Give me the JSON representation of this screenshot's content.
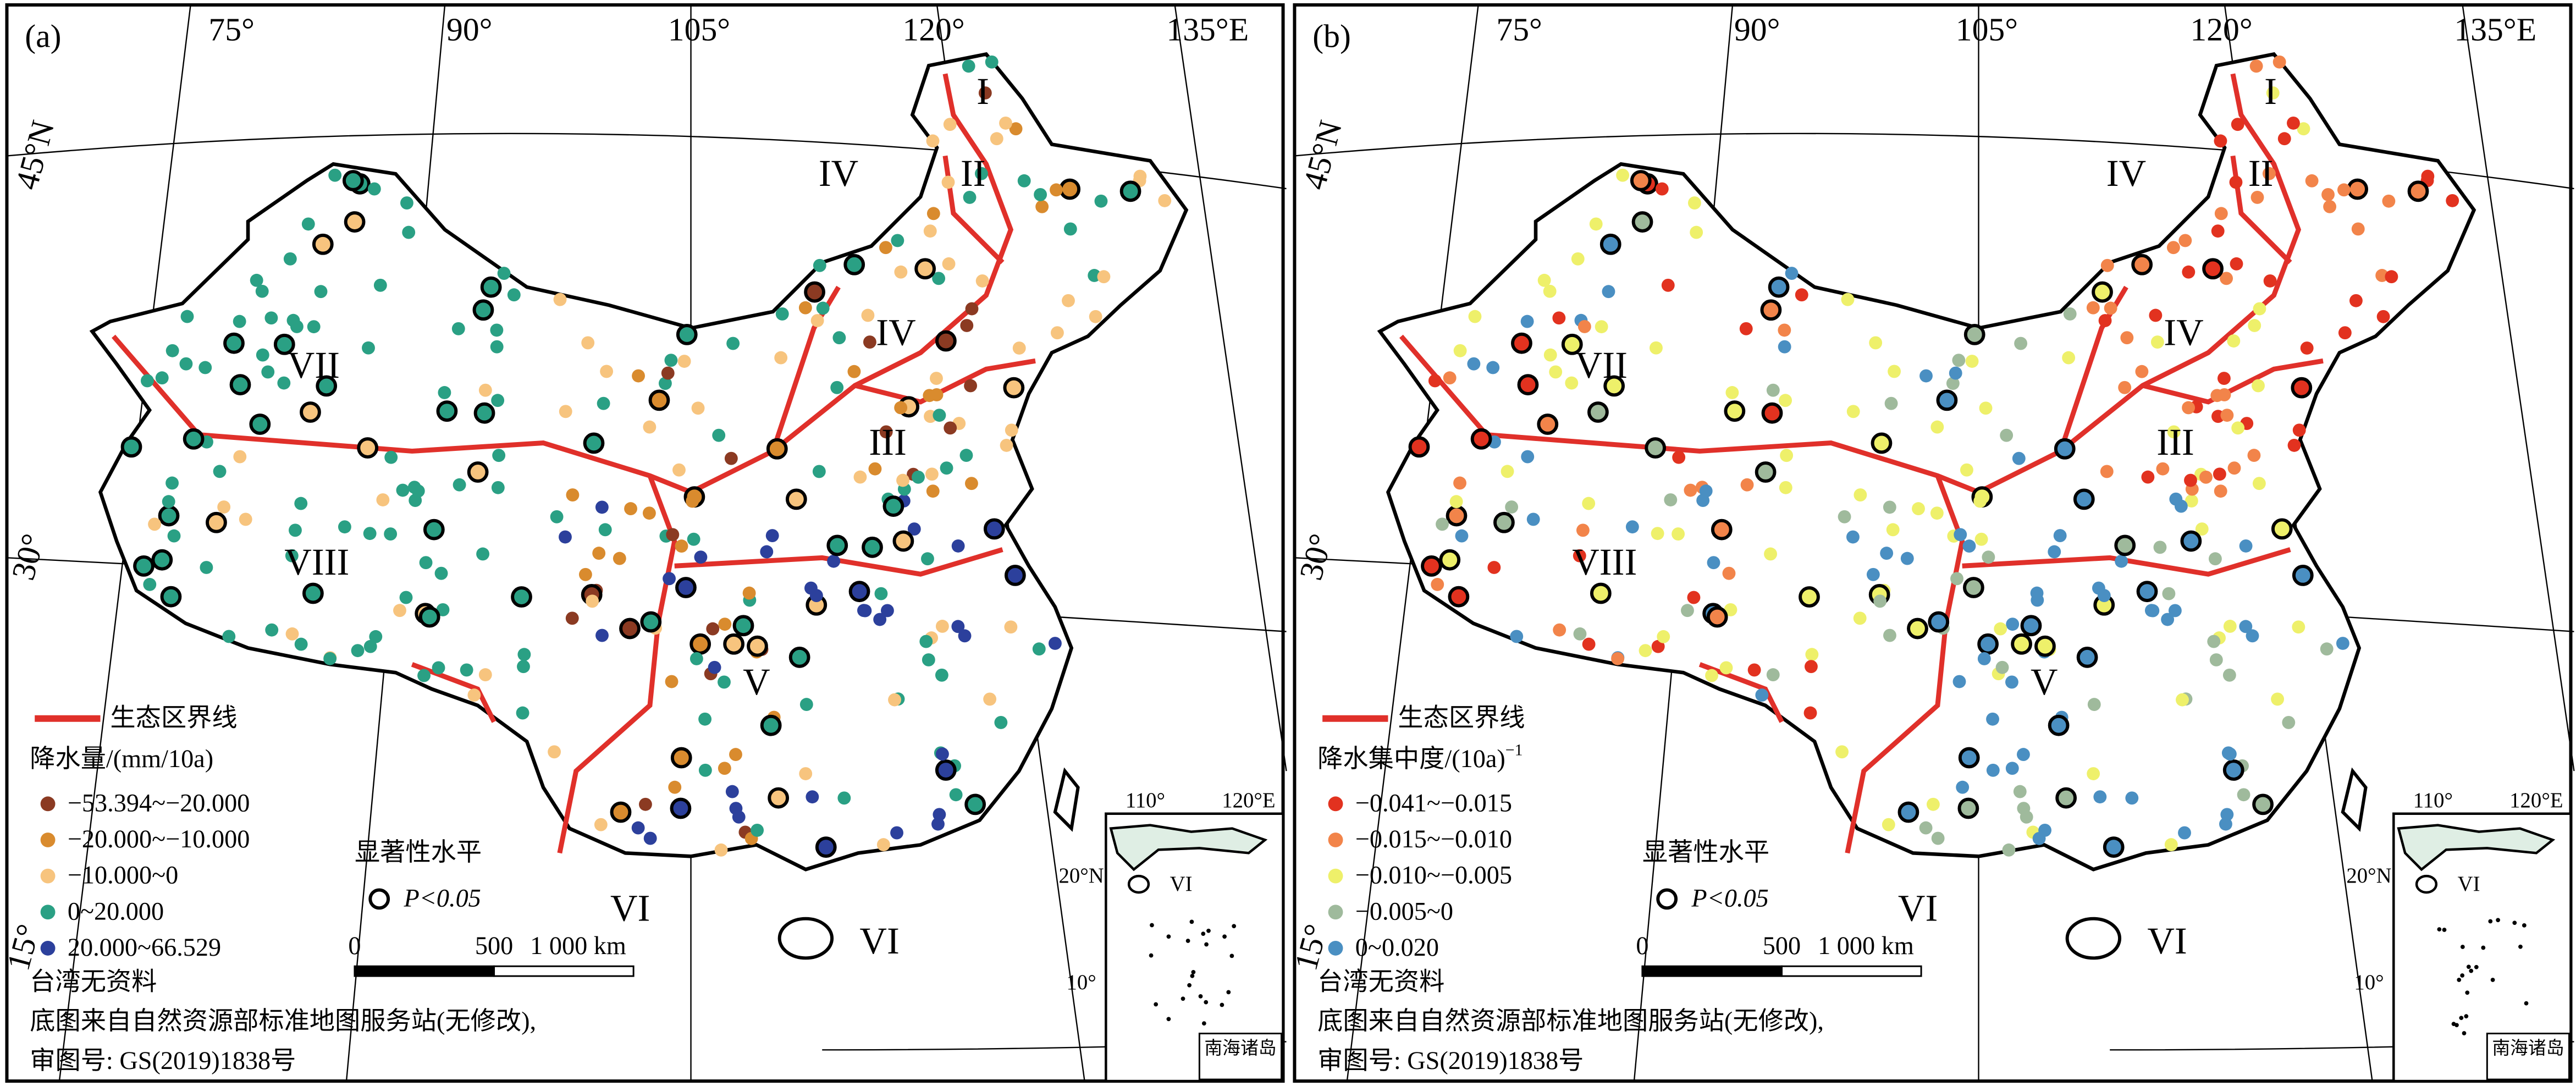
{
  "panels": [
    {
      "label": "(a)",
      "lon_labels": [
        "75°",
        "90°",
        "105°",
        "120°",
        "135°E"
      ],
      "lat_labels": [
        "45°N",
        "30°",
        "15°"
      ],
      "regions": [
        "I",
        "II",
        "IV",
        "IV",
        "III",
        "VII",
        "VIII",
        "V",
        "VI",
        "VI"
      ],
      "legend": {
        "boundary": "生态区界线",
        "boundary_color": "#e0302a",
        "title": "降水量/(mm/10a)",
        "classes": [
          {
            "label": "−53.394~−20.000",
            "color": "#8b3a22"
          },
          {
            "label": "−20.000~−10.000",
            "color": "#d98b2e"
          },
          {
            "label": "−10.000~0",
            "color": "#f7c47e"
          },
          {
            "label": "0~20.000",
            "color": "#2aa084"
          },
          {
            "label": "20.000~66.529",
            "color": "#2c409c"
          }
        ]
      },
      "significance": {
        "title": "显著性水平",
        "label": "P<0.05"
      },
      "scale": [
        "0",
        "500",
        "1 000 km"
      ],
      "notes": [
        "台湾无资料",
        "底图来自自然资源部标准地图服务站(无修改),",
        "审图号: GS(2019)1838号"
      ],
      "inset": {
        "lon_labels": [
          "110°",
          "120°E"
        ],
        "lat_labels": [
          "20°N",
          "10°"
        ],
        "region": "VI",
        "name": "南海诸岛"
      }
    },
    {
      "label": "(b)",
      "lon_labels": [
        "75°",
        "90°",
        "105°",
        "120°",
        "135°E"
      ],
      "lat_labels": [
        "45°N",
        "30°",
        "15°"
      ],
      "regions": [
        "I",
        "II",
        "IV",
        "IV",
        "III",
        "VII",
        "VIII",
        "V",
        "VI",
        "VI"
      ],
      "legend": {
        "boundary": "生态区界线",
        "boundary_color": "#e0302a",
        "title": "降水集中度/(10a)",
        "title_sup": "−1",
        "classes": [
          {
            "label": "−0.041~−0.015",
            "color": "#e2321f"
          },
          {
            "label": "−0.015~−0.010",
            "color": "#f2844a"
          },
          {
            "label": "−0.010~−0.005",
            "color": "#eef06a"
          },
          {
            "label": "−0.005~0",
            "color": "#9fba9c"
          },
          {
            "label": "0~0.020",
            "color": "#4a8fc2"
          }
        ]
      },
      "significance": {
        "title": "显著性水平",
        "label": "P<0.05"
      },
      "scale": [
        "0",
        "500",
        "1 000 km"
      ],
      "notes": [
        "台湾无资料",
        "底图来自自然资源部标准地图服务站(无修改),",
        "审图号: GS(2019)1838号"
      ],
      "inset": {
        "lon_labels": [
          "110°",
          "120°E"
        ],
        "lat_labels": [
          "20°N",
          "10°"
        ],
        "region": "VI",
        "name": "南海诸岛"
      }
    }
  ]
}
